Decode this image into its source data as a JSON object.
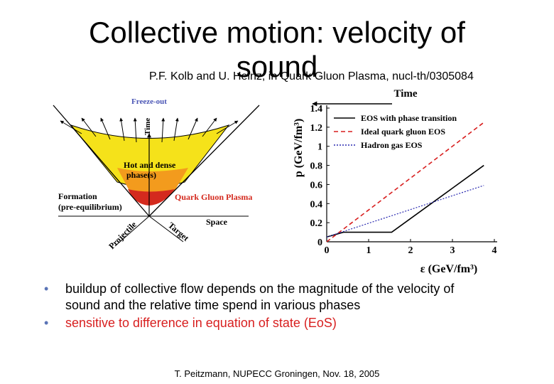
{
  "slide": {
    "title_line1": "Collective motion: velocity of",
    "title_line2": "sound",
    "subtitle": "P.F. Kolb and U. Heinz, in Quark Gluon Plasma, nucl-th/0305084",
    "footer": "T. Peitzmann, NUPECC Groningen, Nov. 18, 2005"
  },
  "diagram": {
    "freeze_out": "Freeze-out",
    "time_axis": "Time",
    "hot_dense_1": "Hot and dense",
    "hot_dense_2": "phase(s)",
    "qgp": "Quark Gluon Plasma",
    "formation_1": "Formation",
    "formation_2": "(pre-equilibrium)",
    "space": "Space",
    "projectile": "Projectile",
    "target": "Target",
    "colors": {
      "outer": "#f5e21a",
      "middle": "#f39b1d",
      "inner": "#d42a1e"
    }
  },
  "chart_data": {
    "type": "line",
    "time_label": "Time",
    "xlabel": "ε (GeV/fm³)",
    "ylabel": "p (GeV/fm³)",
    "xlim": [
      0,
      4
    ],
    "ylim": [
      0,
      1.4
    ],
    "xticks": [
      "0",
      "1",
      "2",
      "3",
      "4"
    ],
    "yticks": [
      "0",
      "0.2",
      "0.4",
      "0.6",
      "0.8",
      "1",
      "1.2",
      "1.4"
    ],
    "series": [
      {
        "name": "EOS with phase transition",
        "style": "solid",
        "color": "#000000",
        "x": [
          0,
          0.4,
          1.55,
          3.75
        ],
        "y": [
          0.05,
          0.1,
          0.1,
          0.8
        ]
      },
      {
        "name": "Ideal quark gluon EOS",
        "style": "dashed",
        "color": "#d81f1f",
        "x": [
          0,
          3.75
        ],
        "y": [
          0,
          1.25
        ]
      },
      {
        "name": "Hadron gas EOS",
        "style": "dotted",
        "color": "#2a2ab0",
        "x": [
          0,
          3.75
        ],
        "y": [
          0.05,
          0.59
        ]
      }
    ]
  },
  "bullets": [
    {
      "line1": "buildup of collective flow depends on the magnitude of the velocity of",
      "line2": "sound and the relative time spend in various phases"
    },
    {
      "line1": "sensitive to difference in equation of state (EoS)"
    }
  ]
}
